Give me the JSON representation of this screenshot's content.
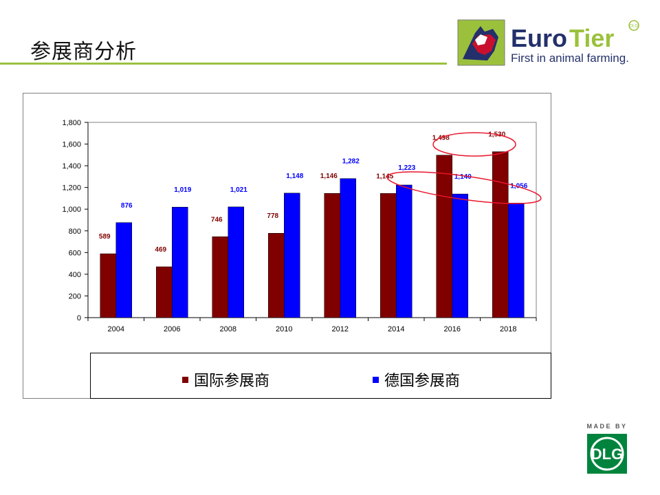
{
  "page_title": "参展商分析",
  "logo": {
    "brand_left": "Euro",
    "brand_right": "Tier",
    "tagline": "First in animal farming.",
    "mark": "DLG"
  },
  "made_by": {
    "label": "MADE BY",
    "mark": "DLG"
  },
  "colors": {
    "international": "#800000",
    "german": "#0000ff",
    "accent_green": "#9bc13c",
    "highlight": "#e8172d"
  },
  "chart_data": {
    "type": "bar",
    "categories": [
      "2004",
      "2006",
      "2008",
      "2010",
      "2012",
      "2014",
      "2016",
      "2018"
    ],
    "series": [
      {
        "name": "国际参展商",
        "values": [
          589,
          469,
          746,
          778,
          1146,
          1145,
          1498,
          1530
        ],
        "labels": [
          "589",
          "469",
          "746",
          "778",
          "1,146",
          "1,145",
          "1,498",
          "1,530"
        ]
      },
      {
        "name": "德国参展商",
        "values": [
          876,
          1019,
          1021,
          1148,
          1282,
          1223,
          1140,
          1056
        ],
        "labels": [
          "876",
          "1,019",
          "1,021",
          "1,148",
          "1,282",
          "1,223",
          "1,140",
          "1,056"
        ]
      }
    ],
    "ylim": [
      0,
      1800
    ],
    "yticks": [
      "0",
      "200",
      "400",
      "600",
      "800",
      "1,000",
      "1,200",
      "1,400",
      "1,600",
      "1,800"
    ],
    "legend_position": "bottom",
    "grid": false
  }
}
